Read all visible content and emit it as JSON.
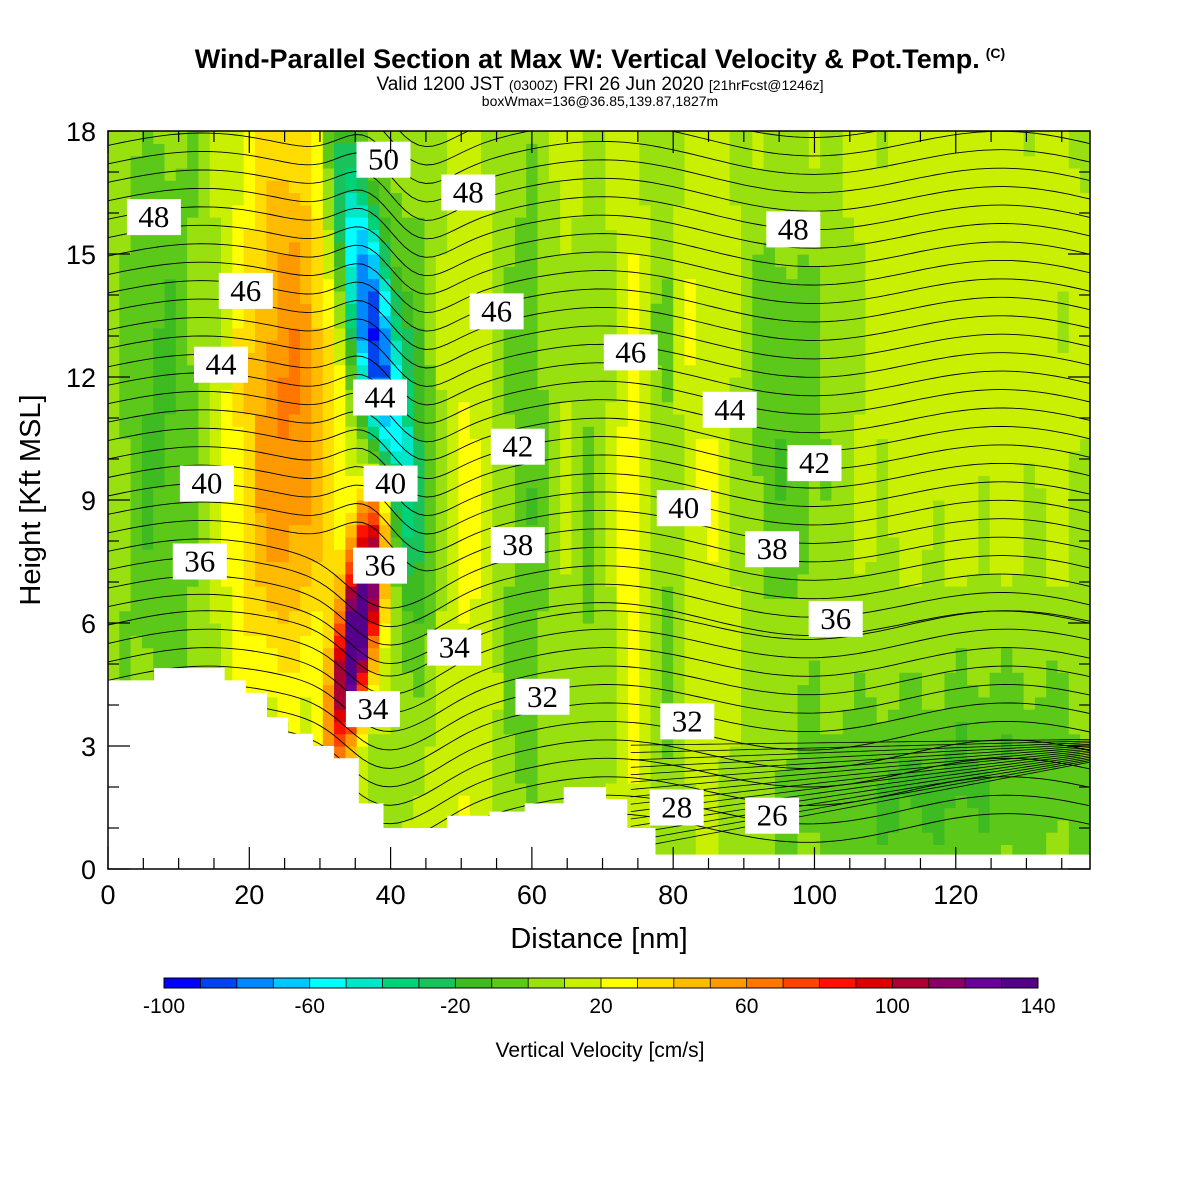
{
  "title": {
    "main": "Wind-Parallel Section at Max W: Vertical Velocity & Pot.Temp.",
    "copyright": "(C)",
    "valid_prefix": "Valid 1200 JST",
    "valid_z": "(0300Z)",
    "valid_date": "FRI 26 Jun 2020",
    "valid_fcst": "[21hrFcst@1246z]",
    "box": "boxWmax=136@36.85,139.87,1827m"
  },
  "chart_data": {
    "type": "heatmap",
    "xlabel": "Distance [nm]",
    "ylabel": "Height [Kft MSL]",
    "xlim": [
      0,
      139
    ],
    "ylim": [
      0,
      18
    ],
    "x_ticks": [
      0,
      20,
      40,
      60,
      80,
      100,
      120
    ],
    "y_ticks": [
      0,
      3,
      6,
      9,
      12,
      15,
      18
    ],
    "colorbar": {
      "label": "Vertical Velocity [cm/s]",
      "min": -100,
      "max": 140,
      "step": 10,
      "tick_labels": [
        "-100",
        "-60",
        "-20",
        "20",
        "60",
        "100",
        "140"
      ],
      "colors": [
        "#0000ff",
        "#0044ee",
        "#0088ff",
        "#00c8ff",
        "#00ffff",
        "#00e6c8",
        "#00d27a",
        "#19c25a",
        "#3fbb22",
        "#5cc81a",
        "#98e010",
        "#c8f000",
        "#ffff00",
        "#ffdd00",
        "#ffbb00",
        "#ff9900",
        "#ff7700",
        "#ff4400",
        "#ff1100",
        "#dd0000",
        "#aa0033",
        "#880066",
        "#6a0099",
        "#550088"
      ]
    },
    "theta_contours": [
      {
        "label": "48",
        "x": 6.5,
        "y": 15.9
      },
      {
        "label": "50",
        "x": 39,
        "y": 17.3
      },
      {
        "label": "48",
        "x": 51,
        "y": 16.5
      },
      {
        "label": "48",
        "x": 97,
        "y": 15.6
      },
      {
        "label": "46",
        "x": 19.5,
        "y": 14.1
      },
      {
        "label": "46",
        "x": 55,
        "y": 13.6
      },
      {
        "label": "46",
        "x": 74,
        "y": 12.6
      },
      {
        "label": "44",
        "x": 16,
        "y": 12.3
      },
      {
        "label": "44",
        "x": 38.5,
        "y": 11.5
      },
      {
        "label": "44",
        "x": 88,
        "y": 11.2
      },
      {
        "label": "42",
        "x": 58,
        "y": 10.3
      },
      {
        "label": "42",
        "x": 100,
        "y": 9.9
      },
      {
        "label": "40",
        "x": 14,
        "y": 9.4
      },
      {
        "label": "40",
        "x": 40,
        "y": 9.4
      },
      {
        "label": "40",
        "x": 81.5,
        "y": 8.8
      },
      {
        "label": "38",
        "x": 58,
        "y": 7.9
      },
      {
        "label": "38",
        "x": 94,
        "y": 7.8
      },
      {
        "label": "36",
        "x": 13,
        "y": 7.5
      },
      {
        "label": "36",
        "x": 38.5,
        "y": 7.4
      },
      {
        "label": "36",
        "x": 103,
        "y": 6.1
      },
      {
        "label": "34",
        "x": 49,
        "y": 5.4
      },
      {
        "label": "34",
        "x": 37.5,
        "y": 3.9
      },
      {
        "label": "32",
        "x": 61.5,
        "y": 4.2
      },
      {
        "label": "32",
        "x": 82,
        "y": 3.6
      },
      {
        "label": "28",
        "x": 80.5,
        "y": 1.5
      },
      {
        "label": "26",
        "x": 94,
        "y": 1.3
      }
    ],
    "terrain": [
      [
        0,
        4.6
      ],
      [
        2.5,
        4.6
      ],
      [
        2.5,
        4.6
      ],
      [
        6.5,
        4.6
      ],
      [
        6.5,
        4.9
      ],
      [
        16.5,
        4.9
      ],
      [
        16.5,
        4.6
      ],
      [
        19.5,
        4.6
      ],
      [
        19.5,
        4.3
      ],
      [
        22.5,
        4.3
      ],
      [
        22.5,
        3.7
      ],
      [
        25.5,
        3.7
      ],
      [
        25.5,
        3.3
      ],
      [
        29,
        3.3
      ],
      [
        29,
        3.0
      ],
      [
        32,
        3.0
      ],
      [
        32,
        2.7
      ],
      [
        35.5,
        2.7
      ],
      [
        35.5,
        1.6
      ],
      [
        39,
        1.6
      ],
      [
        39,
        1.0
      ],
      [
        48,
        1.0
      ],
      [
        48,
        1.3
      ],
      [
        54,
        1.3
      ],
      [
        54,
        1.4
      ],
      [
        59,
        1.4
      ],
      [
        59,
        1.6
      ],
      [
        64.5,
        1.6
      ],
      [
        64.5,
        2.0
      ],
      [
        70.5,
        2.0
      ],
      [
        70.5,
        1.7
      ],
      [
        73.5,
        1.7
      ],
      [
        73.5,
        1.0
      ],
      [
        77.5,
        1.0
      ],
      [
        77.5,
        0.35
      ],
      [
        139,
        0.35
      ]
    ]
  }
}
